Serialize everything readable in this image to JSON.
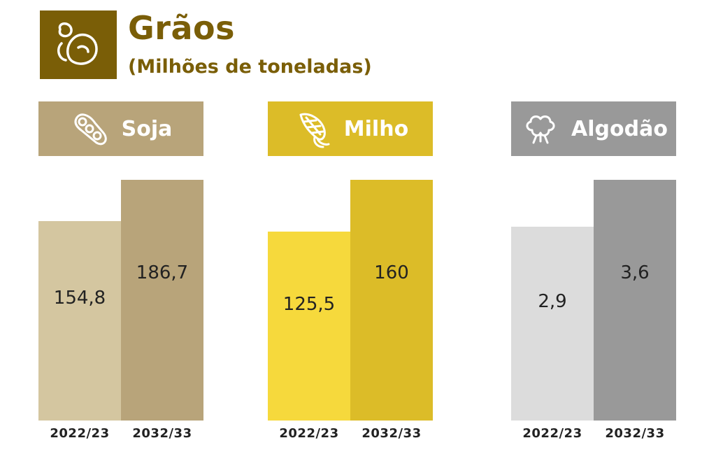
{
  "header": {
    "title": "Grãos",
    "subtitle": "(Milhões de toneladas)",
    "icon": "bean-icon",
    "color": "#7a5e07"
  },
  "panels": [
    {
      "name": "Soja",
      "icon": "soybean-pod-icon",
      "banner_color": "#b8a47a",
      "bar_colors": [
        "#d4c6a0",
        "#b8a47a"
      ]
    },
    {
      "name": "Milho",
      "icon": "corn-icon",
      "banner_color": "#dcbc28",
      "bar_colors": [
        "#f6d93c",
        "#dcbc28"
      ]
    },
    {
      "name": "Algodão",
      "icon": "cotton-icon",
      "banner_color": "#999999",
      "bar_colors": [
        "#dcdcdc",
        "#999999"
      ]
    }
  ],
  "chart_data": [
    {
      "type": "bar",
      "title": "Soja",
      "categories": [
        "2022/23",
        "2032/33"
      ],
      "values": [
        154.8,
        186.7
      ],
      "value_labels": [
        "154,8",
        "186,7"
      ],
      "ylim": [
        0,
        186.7
      ]
    },
    {
      "type": "bar",
      "title": "Milho",
      "categories": [
        "2022/23",
        "2032/33"
      ],
      "values": [
        125.5,
        160
      ],
      "value_labels": [
        "125,5",
        "160"
      ],
      "ylim": [
        0,
        160
      ]
    },
    {
      "type": "bar",
      "title": "Algodão",
      "categories": [
        "2022/23",
        "2032/33"
      ],
      "values": [
        2.9,
        3.6
      ],
      "value_labels": [
        "2,9",
        "3,6"
      ],
      "ylim": [
        0,
        3.6
      ]
    }
  ]
}
